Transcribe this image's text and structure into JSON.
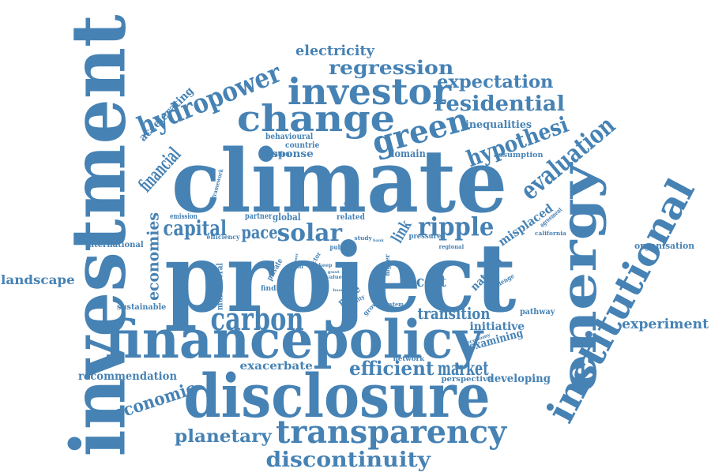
{
  "color": "#4682b4",
  "words": [
    {
      "text": "project"
    },
    {
      "text": "climate"
    },
    {
      "text": "investment"
    },
    {
      "text": "disclosure"
    },
    {
      "text": "financepolicy"
    },
    {
      "text": "energy"
    },
    {
      "text": "institutional"
    },
    {
      "text": "transparency"
    },
    {
      "text": "investor"
    },
    {
      "text": "change"
    },
    {
      "text": "carbon"
    },
    {
      "text": "green"
    },
    {
      "text": "hydropower"
    },
    {
      "text": "discontinuity"
    },
    {
      "text": "evaluation"
    },
    {
      "text": "ripple"
    },
    {
      "text": "solar"
    },
    {
      "text": "hypothesi"
    },
    {
      "text": "capital"
    },
    {
      "text": "residential"
    },
    {
      "text": "regression"
    },
    {
      "text": "efficient"
    },
    {
      "text": "planetary"
    },
    {
      "text": "market"
    },
    {
      "text": "expectation"
    },
    {
      "text": "economic"
    },
    {
      "text": "financial"
    },
    {
      "text": "pace"
    },
    {
      "text": "electricity"
    },
    {
      "text": "transition"
    },
    {
      "text": "experiment"
    },
    {
      "text": "economies"
    },
    {
      "text": "cost"
    },
    {
      "text": "link"
    },
    {
      "text": "landscape"
    },
    {
      "text": "misplaced"
    },
    {
      "text": "recommendation"
    },
    {
      "text": "exacerbate"
    },
    {
      "text": "developing"
    },
    {
      "text": "initiative"
    },
    {
      "text": "examining"
    },
    {
      "text": "inequalities"
    },
    {
      "text": "accelerating"
    },
    {
      "text": "natural"
    },
    {
      "text": "more"
    },
    {
      "text": "response"
    },
    {
      "text": "domain"
    },
    {
      "text": "organisation"
    },
    {
      "text": "international"
    },
    {
      "text": "sustainable"
    },
    {
      "text": "perspective"
    },
    {
      "text": "pathway"
    },
    {
      "text": "behavioural"
    },
    {
      "text": "countrie"
    },
    {
      "text": "allocation"
    },
    {
      "text": "assumption"
    },
    {
      "text": "multilateral"
    },
    {
      "text": "private"
    },
    {
      "text": "global"
    },
    {
      "text": "partner"
    },
    {
      "text": "emission"
    },
    {
      "text": "efficiency"
    },
    {
      "text": "related"
    },
    {
      "text": "study"
    },
    {
      "text": "pressure"
    },
    {
      "text": "regional"
    },
    {
      "text": "california"
    },
    {
      "text": "agreement"
    },
    {
      "text": "challenge"
    },
    {
      "text": "public"
    },
    {
      "text": "sector"
    },
    {
      "text": "clean"
    },
    {
      "text": "finding"
    },
    {
      "text": "optimal"
    },
    {
      "text": "higher"
    },
    {
      "text": "growth"
    },
    {
      "text": "system"
    },
    {
      "text": "network"
    },
    {
      "text": "economy"
    },
    {
      "text": "framework"
    },
    {
      "text": "evidence"
    },
    {
      "text": "stability"
    },
    {
      "text": "value"
    },
    {
      "text": "power"
    },
    {
      "text": "gust"
    },
    {
      "text": "bank"
    },
    {
      "text": "keep"
    },
    {
      "text": "base"
    }
  ]
}
